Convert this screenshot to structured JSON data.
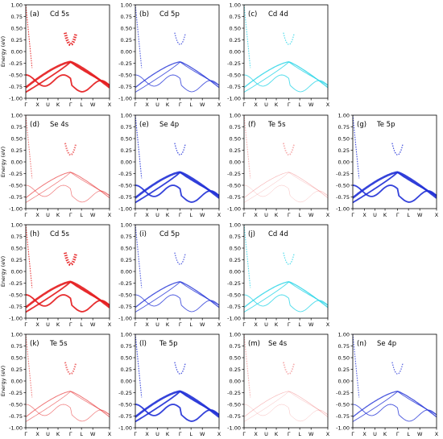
{
  "figure": {
    "energy_label": "Energy (eV)",
    "y_ticks": [
      "1.00",
      "0.75",
      "0.50",
      "0.25",
      "0.00",
      "-0.25",
      "-0.50",
      "-0.75",
      "-1.00"
    ],
    "x_ticks": [
      "Γ",
      "X",
      "U",
      "K",
      "Γ",
      "L",
      "W",
      "X"
    ]
  },
  "colors": {
    "s": "#e41a1c",
    "p": "#1f2fd6",
    "d": "#22d3e6",
    "frame": "#000000"
  },
  "chart_data": [
    {
      "type": "line",
      "label": "(a)",
      "orbital": "Cd 5s",
      "color_key": "s",
      "weight": "strong",
      "ylim": [
        -1,
        1
      ],
      "ylabel": "Energy (eV)"
    },
    {
      "type": "line",
      "label": "(b)",
      "orbital": "Cd 5p",
      "color_key": "p",
      "weight": "medium",
      "ylim": [
        -1,
        1
      ]
    },
    {
      "type": "line",
      "label": "(c)",
      "orbital": "Cd 4d",
      "color_key": "d",
      "weight": "medium",
      "ylim": [
        -1,
        1
      ]
    },
    {
      "type": "line",
      "label": "(d)",
      "orbital": "Se 4s",
      "color_key": "s",
      "weight": "weak",
      "ylim": [
        -1,
        1
      ],
      "ylabel": "Energy (eV)"
    },
    {
      "type": "line",
      "label": "(e)",
      "orbital": "Se 4p",
      "color_key": "p",
      "weight": "strong",
      "ylim": [
        -1,
        1
      ]
    },
    {
      "type": "line",
      "label": "(f)",
      "orbital": "Te 5s",
      "color_key": "s",
      "weight": "faint",
      "ylim": [
        -1,
        1
      ]
    },
    {
      "type": "line",
      "label": "(g)",
      "orbital": "Te 5p",
      "color_key": "p",
      "weight": "strong",
      "ylim": [
        -1,
        1
      ]
    },
    {
      "type": "line",
      "label": "(h)",
      "orbital": "Cd 5s",
      "color_key": "s",
      "weight": "strong",
      "ylim": [
        -1,
        1
      ],
      "ylabel": "Energy (eV)"
    },
    {
      "type": "line",
      "label": "(i)",
      "orbital": "Cd 5p",
      "color_key": "p",
      "weight": "medium",
      "ylim": [
        -1,
        1
      ]
    },
    {
      "type": "line",
      "label": "(j)",
      "orbital": "Cd 4d",
      "color_key": "d",
      "weight": "medium",
      "ylim": [
        -1,
        1
      ]
    },
    {
      "type": "line",
      "label": "(k)",
      "orbital": "Te 5s",
      "color_key": "s",
      "weight": "weak",
      "ylim": [
        -1,
        1
      ],
      "ylabel": "Energy (eV)"
    },
    {
      "type": "line",
      "label": "(l)",
      "orbital": "Te 5p",
      "color_key": "p",
      "weight": "strong",
      "ylim": [
        -1,
        1
      ]
    },
    {
      "type": "line",
      "label": "(m)",
      "orbital": "Se 4s",
      "color_key": "s",
      "weight": "faint",
      "ylim": [
        -1,
        1
      ]
    },
    {
      "type": "line",
      "label": "(n)",
      "orbital": "Se 4p",
      "color_key": "p",
      "weight": "medium",
      "ylim": [
        -1,
        1
      ]
    }
  ]
}
